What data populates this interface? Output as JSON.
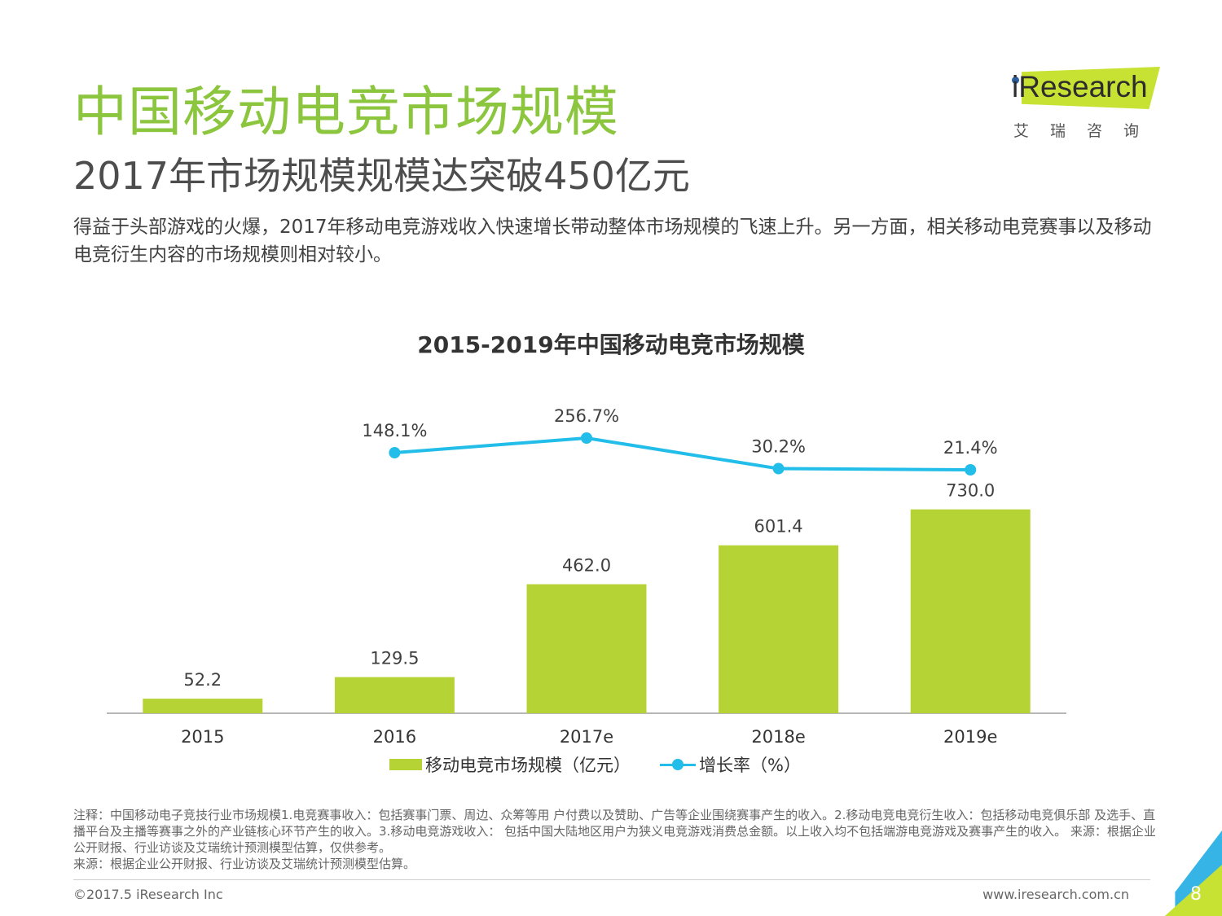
{
  "header": {
    "title": "中国移动电竞市场规模",
    "subtitle": "2017年市场规模规模达突破450亿元",
    "intro": "得益于头部游戏的火爆，2017年移动电竞游戏收入快速增长带动整体市场规模的飞速上升。另一方面，相关移动电竞赛事以及移动电竞衍生内容的市场规模则相对较小。"
  },
  "logo": {
    "wordmark": "iResearch",
    "tagline": "艾瑞咨询"
  },
  "chart_data": {
    "type": "bar",
    "title": "2015-2019年中国移动电竞市场规模",
    "categories": [
      "2015",
      "2016",
      "2017e",
      "2018e",
      "2019e"
    ],
    "series": [
      {
        "name": "移动电竞市场规模（亿元）",
        "type": "bar",
        "values": [
          52.2,
          129.5,
          462.0,
          601.4,
          730.0
        ],
        "labels": [
          "52.2",
          "129.5",
          "462.0",
          "601.4",
          "730.0"
        ],
        "color": "#b5d334"
      },
      {
        "name": "增长率（%）",
        "type": "line",
        "values": [
          null,
          148.1,
          256.7,
          30.2,
          21.4
        ],
        "labels": [
          "",
          "148.1%",
          "256.7%",
          "30.2%",
          "21.4%"
        ],
        "color": "#22bde8"
      }
    ],
    "grid": false,
    "legend": "bottom"
  },
  "notes": {
    "note": "注释：中国移动电子竞技行业市场规模1.电竞赛事收入：包括赛事门票、周边、众筹等用 户付费以及赞助、广告等企业围绕赛事产生的收入。2.移动电竞电竞衍生收入：包括移动电竞俱乐部 及选手、直播平台及主播等赛事之外的产业链核心环节产生的收入。3.移动电竞游戏收入： 包括中国大陆地区用户为狭义电竞游戏消费总金额。以上收入均不包括端游电竞游戏及赛事产生的收入。 来源：根据企业公开财报、行业访谈及艾瑞统计预测模型估算，仅供参考。",
    "source": "来源：根据企业公开财报、行业访谈及艾瑞统计预测模型估算。"
  },
  "footer": {
    "copyright": "©2017.5 iResearch Inc",
    "website": "www.iresearch.com.cn",
    "page": "8"
  }
}
